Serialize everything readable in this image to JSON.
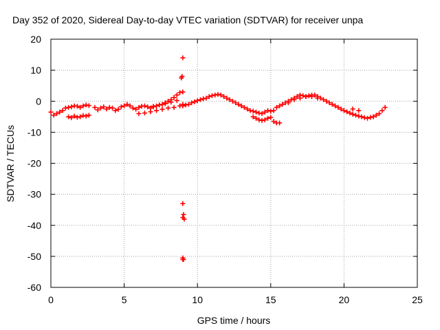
{
  "chart_data": {
    "type": "scatter",
    "title": "Day 352 of 2020, Sidereal Day-to-day VTEC variation (SDTVAR) for receiver unpa",
    "xlabel": "GPS time / hours",
    "ylabel": "SDTVAR / TECUs",
    "xlim": [
      0,
      25
    ],
    "ylim": [
      -60,
      20
    ],
    "xticks": [
      0,
      5,
      10,
      15,
      20,
      25
    ],
    "yticks": [
      -60,
      -50,
      -40,
      -30,
      -20,
      -10,
      0,
      10,
      20
    ],
    "grid": true,
    "marker": "+",
    "series": [
      {
        "name": "SDTVAR",
        "color": "#ff0000",
        "x": [
          0.0,
          0.2,
          0.4,
          0.6,
          0.8,
          1.0,
          1.2,
          1.4,
          1.6,
          1.8,
          2.0,
          2.2,
          2.4,
          2.6,
          1.2,
          1.4,
          1.6,
          1.8,
          2.0,
          2.2,
          2.4,
          2.6,
          3.0,
          3.2,
          3.4,
          3.6,
          3.8,
          4.0,
          4.2,
          4.4,
          4.6,
          4.8,
          5.0,
          5.2,
          5.4,
          5.6,
          5.8,
          6.0,
          6.2,
          6.4,
          6.6,
          6.8,
          7.0,
          7.2,
          7.4,
          7.6,
          7.8,
          8.0,
          8.2,
          8.4,
          8.6,
          8.8,
          9.0,
          6.0,
          6.4,
          6.8,
          7.2,
          7.6,
          8.0,
          8.4,
          8.8,
          9.0,
          7.0,
          7.4,
          7.8,
          8.2,
          8.6,
          9.0,
          9.2,
          9.4,
          9.6,
          9.8,
          10.0,
          10.2,
          10.4,
          10.6,
          10.8,
          11.0,
          11.2,
          11.4,
          11.6,
          11.8,
          12.0,
          12.2,
          12.4,
          12.6,
          12.8,
          13.0,
          13.2,
          13.4,
          13.6,
          13.8,
          14.0,
          14.2,
          14.4,
          14.6,
          14.8,
          15.0,
          13.8,
          14.0,
          14.2,
          14.4,
          14.6,
          14.8,
          15.0,
          15.2,
          15.4,
          15.6,
          15.2,
          15.4,
          15.6,
          15.8,
          16.0,
          16.2,
          16.4,
          16.6,
          16.8,
          17.0,
          17.2,
          17.4,
          17.6,
          17.8,
          18.0,
          18.2,
          18.4,
          18.6,
          18.8,
          19.0,
          19.2,
          19.4,
          19.6,
          19.8,
          20.0,
          20.2,
          20.4,
          20.6,
          20.8,
          21.0,
          21.2,
          21.4,
          21.6,
          21.8,
          22.0,
          22.2,
          22.4,
          22.6,
          22.8,
          16.2,
          16.6,
          17.0,
          17.4,
          17.8,
          18.2,
          20.6,
          21.0,
          9.0,
          8.9,
          8.95,
          9.0,
          9.05,
          9.1,
          9.0,
          9.0,
          9.05,
          9.0
        ],
        "y": [
          -3.5,
          -4.5,
          -4.0,
          -3.5,
          -3.0,
          -2.2,
          -2.0,
          -1.8,
          -1.5,
          -1.6,
          -2.0,
          -1.5,
          -1.2,
          -1.4,
          -5.0,
          -5.3,
          -4.8,
          -5.2,
          -5.0,
          -4.6,
          -4.8,
          -4.5,
          -2.0,
          -2.8,
          -2.2,
          -1.8,
          -2.5,
          -2.0,
          -2.2,
          -3.0,
          -2.6,
          -1.8,
          -1.5,
          -1.0,
          -1.5,
          -2.2,
          -2.6,
          -2.0,
          -1.6,
          -1.5,
          -1.8,
          -2.2,
          -1.8,
          -1.5,
          -1.2,
          -1.0,
          -0.5,
          0.0,
          0.5,
          1.2,
          2.0,
          2.8,
          3.0,
          -4.0,
          -3.8,
          -3.4,
          -3.0,
          -2.6,
          -2.2,
          -2.0,
          -1.5,
          -1.0,
          -1.6,
          -1.2,
          -0.8,
          -0.3,
          0.2,
          -1.5,
          -1.2,
          -1.0,
          -0.5,
          -0.2,
          0.2,
          0.5,
          0.8,
          1.0,
          1.5,
          1.8,
          2.0,
          2.2,
          2.0,
          1.5,
          1.0,
          0.5,
          0.0,
          -0.5,
          -1.0,
          -1.5,
          -2.0,
          -2.5,
          -3.0,
          -3.2,
          -3.5,
          -3.8,
          -4.0,
          -3.5,
          -3.0,
          -3.2,
          -5.0,
          -5.5,
          -6.0,
          -6.2,
          -6.0,
          -5.5,
          -5.2,
          -6.5,
          -7.0,
          -7.0,
          -3.0,
          -2.0,
          -1.5,
          -1.0,
          -0.5,
          0.0,
          0.5,
          1.0,
          1.5,
          2.0,
          1.8,
          1.5,
          1.8,
          2.0,
          2.0,
          1.5,
          1.0,
          0.5,
          0.0,
          -0.5,
          -1.0,
          -1.5,
          -2.0,
          -2.5,
          -3.0,
          -3.4,
          -3.8,
          -4.2,
          -4.5,
          -4.8,
          -5.0,
          -5.3,
          -5.5,
          -5.2,
          -5.0,
          -4.5,
          -4.0,
          -3.0,
          -2.0,
          -0.5,
          0.5,
          1.0,
          1.5,
          1.5,
          1.0,
          -2.5,
          -3.0,
          14.0,
          7.5,
          8.0,
          -33.0,
          -36.5,
          -38.0,
          -37.5,
          -50.5,
          -51.0,
          -51.0
        ]
      }
    ]
  }
}
